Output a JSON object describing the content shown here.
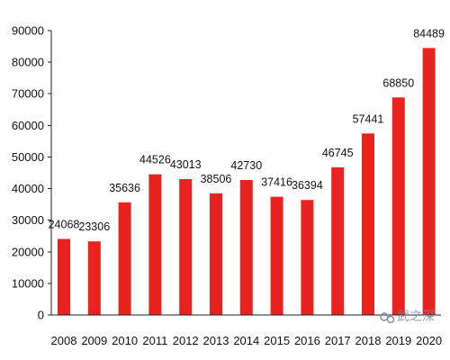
{
  "chart_data": {
    "type": "bar",
    "categories": [
      "2008",
      "2009",
      "2010",
      "2011",
      "2012",
      "2013",
      "2014",
      "2015",
      "2016",
      "2017",
      "2018",
      "2019",
      "2020"
    ],
    "values": [
      24068,
      23306,
      35636,
      44526,
      43013,
      38506,
      42730,
      37416,
      36394,
      46745,
      57441,
      68850,
      84489
    ],
    "value_labels": [
      "24068",
      "23306",
      "35636",
      "44526",
      "43013",
      "38506",
      "42730",
      "37416",
      "36394",
      "46745",
      "57441",
      "68850",
      "84489"
    ],
    "ylim": [
      0,
      90000
    ],
    "y_ticks": [
      0,
      10000,
      20000,
      30000,
      40000,
      50000,
      60000,
      70000,
      80000,
      90000
    ],
    "y_tick_labels": [
      "0",
      "10000",
      "20000",
      "30000",
      "40000",
      "50000",
      "60000",
      "70000",
      "80000",
      "90000"
    ],
    "title": "",
    "xlabel": "",
    "ylabel": "",
    "grid": false,
    "legend": "none",
    "bar_color": "#e8221f",
    "watermark": "武之深"
  }
}
